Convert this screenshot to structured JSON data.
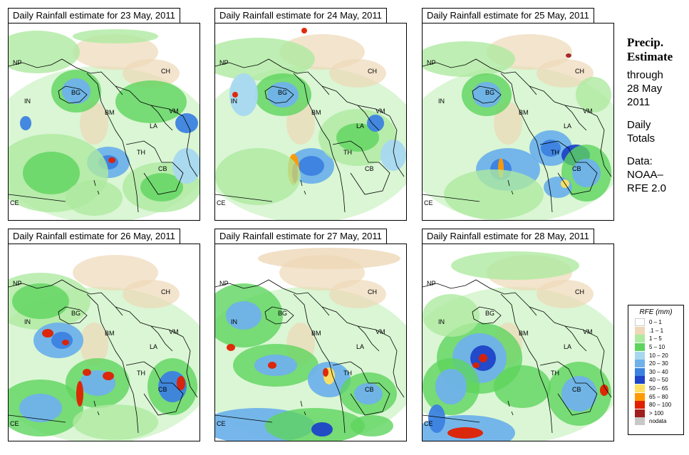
{
  "panels": [
    {
      "title": "Daily Rainfall estimate for  23 May, 2011"
    },
    {
      "title": "Daily Rainfall estimate for  24 May, 2011"
    },
    {
      "title": "Daily Rainfall estimate for  25 May, 2011"
    },
    {
      "title": "Daily Rainfall estimate for  26 May, 2011"
    },
    {
      "title": "Daily Rainfall estimate for  27 May, 2011"
    },
    {
      "title": "Daily Rainfall estimate for  28 May, 2011"
    }
  ],
  "country_labels": [
    "NP",
    "CH",
    "IN",
    "BG",
    "BM",
    "VM",
    "LA",
    "TH",
    "CB",
    "CE"
  ],
  "side": {
    "heading_line1": "Precip.",
    "heading_line2": "Estimate",
    "through": "through",
    "date_line1": "28 May",
    "date_line2": "2011",
    "daily1": "Daily",
    "daily2": "Totals",
    "data1": "Data:",
    "data2": "NOAA–",
    "data3": "RFE 2.0"
  },
  "legend": {
    "title": "RFE (mm)",
    "items": [
      {
        "label": "0 – 1",
        "color": "#ffffff"
      },
      {
        "label": ".1 – 1",
        "color": "#eed8b8"
      },
      {
        "label": "1 – 5",
        "color": "#aeeaa0"
      },
      {
        "label": "5 – 10",
        "color": "#5ed45e"
      },
      {
        "label": "10 – 20",
        "color": "#a8d8f0"
      },
      {
        "label": "20 – 30",
        "color": "#6fb2ea"
      },
      {
        "label": "30 – 40",
        "color": "#3c82e0"
      },
      {
        "label": "40 – 50",
        "color": "#1e44c8"
      },
      {
        "label": "50 – 65",
        "color": "#ffe060"
      },
      {
        "label": "65 – 80",
        "color": "#ff9a00"
      },
      {
        "label": "80 – 100",
        "color": "#e02000"
      },
      {
        "label": "> 100",
        "color": "#a02020"
      },
      {
        "label": "nodata",
        "color": "#c8c8c8"
      }
    ]
  }
}
